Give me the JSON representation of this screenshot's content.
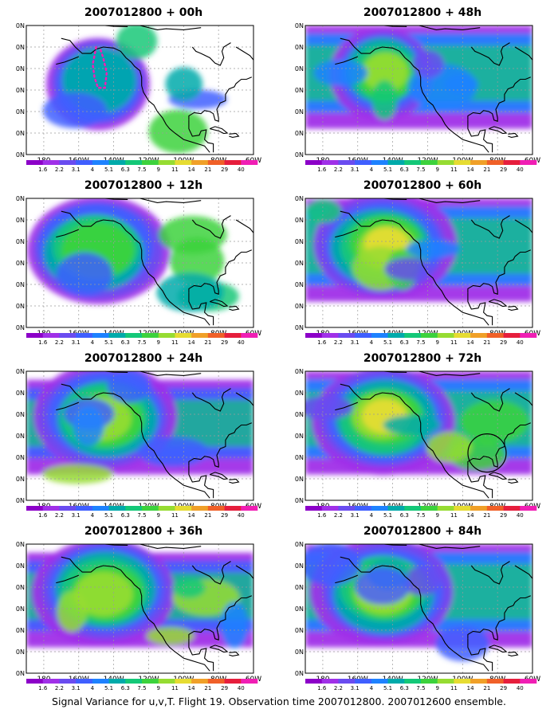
{
  "footer": "Signal Variance for u,v,T. Flight 19. Observation time 2007012800. 2007012600 ensemble.",
  "lat_labels": [
    "70N",
    "60N",
    "50N",
    "40N",
    "30N",
    "20N",
    "10N"
  ],
  "lon_labels": [
    "180",
    "160W",
    "140W",
    "120W",
    "100W",
    "80W",
    "60W"
  ],
  "colorbar": {
    "labels": [
      "1.6",
      "2.2",
      "3.1",
      "4",
      "5.1",
      "6.3",
      "7.5",
      "9",
      "11",
      "14",
      "21",
      "29",
      "40"
    ],
    "colors": [
      "#8c00c8",
      "#a030e8",
      "#6a4cf0",
      "#3f5fff",
      "#1e82ff",
      "#00aaaa",
      "#14c878",
      "#3cd23c",
      "#96dc32",
      "#e6dc32",
      "#f0a028",
      "#f06028",
      "#e61e3c",
      "#f01eb4"
    ]
  },
  "panels": [
    {
      "title": "2007012800 + 00h",
      "intensity": 0.35
    },
    {
      "title": "2007012800 + 48h",
      "intensity": 0.62
    },
    {
      "title": "2007012800 + 12h",
      "intensity": 0.45
    },
    {
      "title": "2007012800 + 60h",
      "intensity": 0.68
    },
    {
      "title": "2007012800 + 24h",
      "intensity": 0.55
    },
    {
      "title": "2007012800 + 72h",
      "intensity": 0.65
    },
    {
      "title": "2007012800 + 36h",
      "intensity": 0.6
    },
    {
      "title": "2007012800 + 84h",
      "intensity": 0.66
    }
  ],
  "annotations": {
    "flight_track_panel": 0,
    "circle_panel": 5
  }
}
